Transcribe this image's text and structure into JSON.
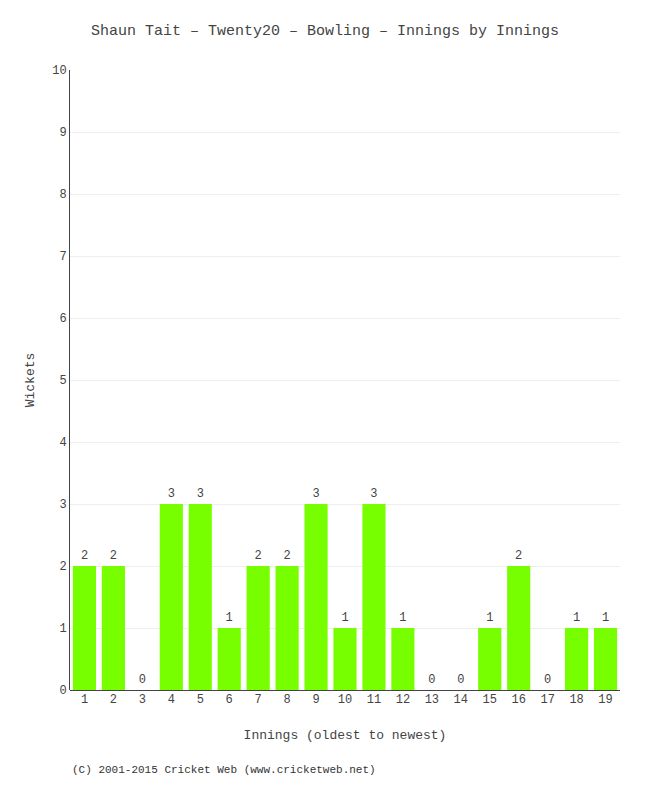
{
  "chart_data": {
    "type": "bar",
    "title": "Shaun Tait – Twenty20 – Bowling – Innings by Innings",
    "xlabel": "Innings (oldest to newest)",
    "ylabel": "Wickets",
    "categories": [
      "1",
      "2",
      "3",
      "4",
      "5",
      "6",
      "7",
      "8",
      "9",
      "10",
      "11",
      "12",
      "13",
      "14",
      "15",
      "16",
      "17",
      "18",
      "19"
    ],
    "values": [
      2,
      2,
      0,
      3,
      3,
      1,
      2,
      2,
      3,
      1,
      3,
      1,
      0,
      0,
      1,
      2,
      0,
      1,
      1
    ],
    "color": "#77ff00",
    "ylim": [
      0,
      10
    ],
    "yticks": [
      0,
      1,
      2,
      3,
      4,
      5,
      6,
      7,
      8,
      9,
      10
    ],
    "grid": true,
    "data_labels": true,
    "annotations": [
      "(C) 2001-2015 Cricket Web (www.cricketweb.net)"
    ]
  }
}
